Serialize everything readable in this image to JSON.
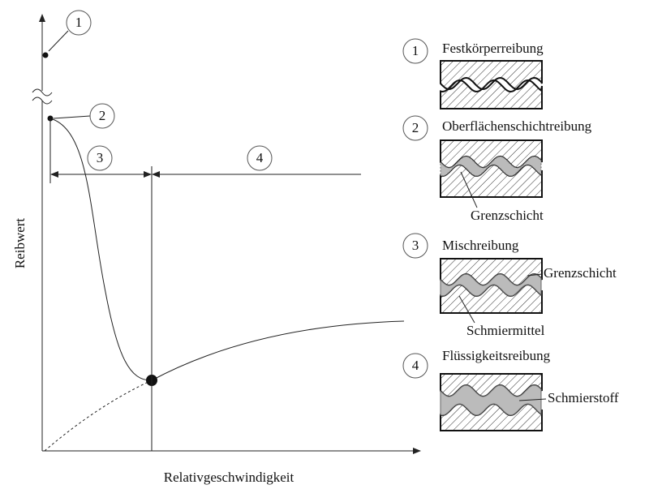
{
  "y_axis_label": "Reibwert",
  "x_axis_label": "Relativgeschwindigkeit",
  "curve_callouts": [
    "1",
    "2",
    "3",
    "4"
  ],
  "regimes": [
    {
      "number": "1",
      "name": "Festkörperreibung"
    },
    {
      "number": "2",
      "name": "Oberflächenschichtreibung",
      "labels": [
        "Grenzschicht"
      ]
    },
    {
      "number": "3",
      "name": "Mischreibung",
      "labels": [
        "Grenzschicht",
        "Schmiermittel"
      ]
    },
    {
      "number": "4",
      "name": "Flüssigkeitsreibung",
      "labels": [
        "Schmierstoff"
      ]
    }
  ]
}
